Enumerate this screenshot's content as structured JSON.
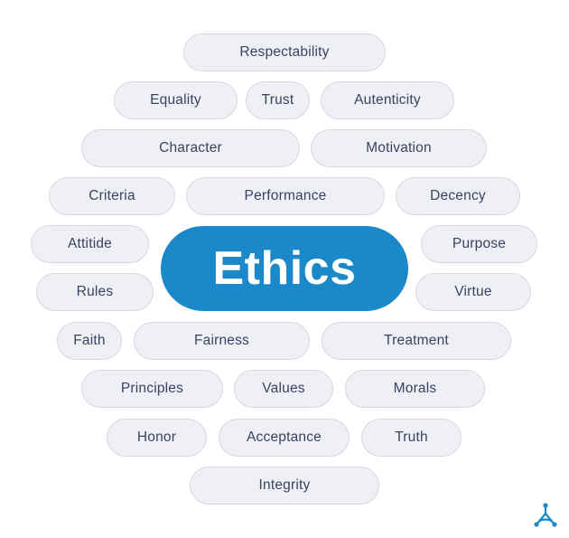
{
  "center_label": "Ethics",
  "colors": {
    "accent": "#1b88c9",
    "pill_bg": "#eef0f5",
    "pill_border": "#d5d9e2",
    "text": "#3a4260"
  },
  "pills": [
    "Respectability",
    "Equality",
    "Trust",
    "Autenticity",
    "Character",
    "Motivation",
    "Criteria",
    "Performance",
    "Decency",
    "Attitide",
    "Purpose",
    "Rules",
    "Virtue",
    "Faith",
    "Fairness",
    "Treatment",
    "Principles",
    "Values",
    "Morals",
    "Honor",
    "Acceptance",
    "Truth",
    "Integrity"
  ],
  "logo_icon": "three-node-logo-icon"
}
